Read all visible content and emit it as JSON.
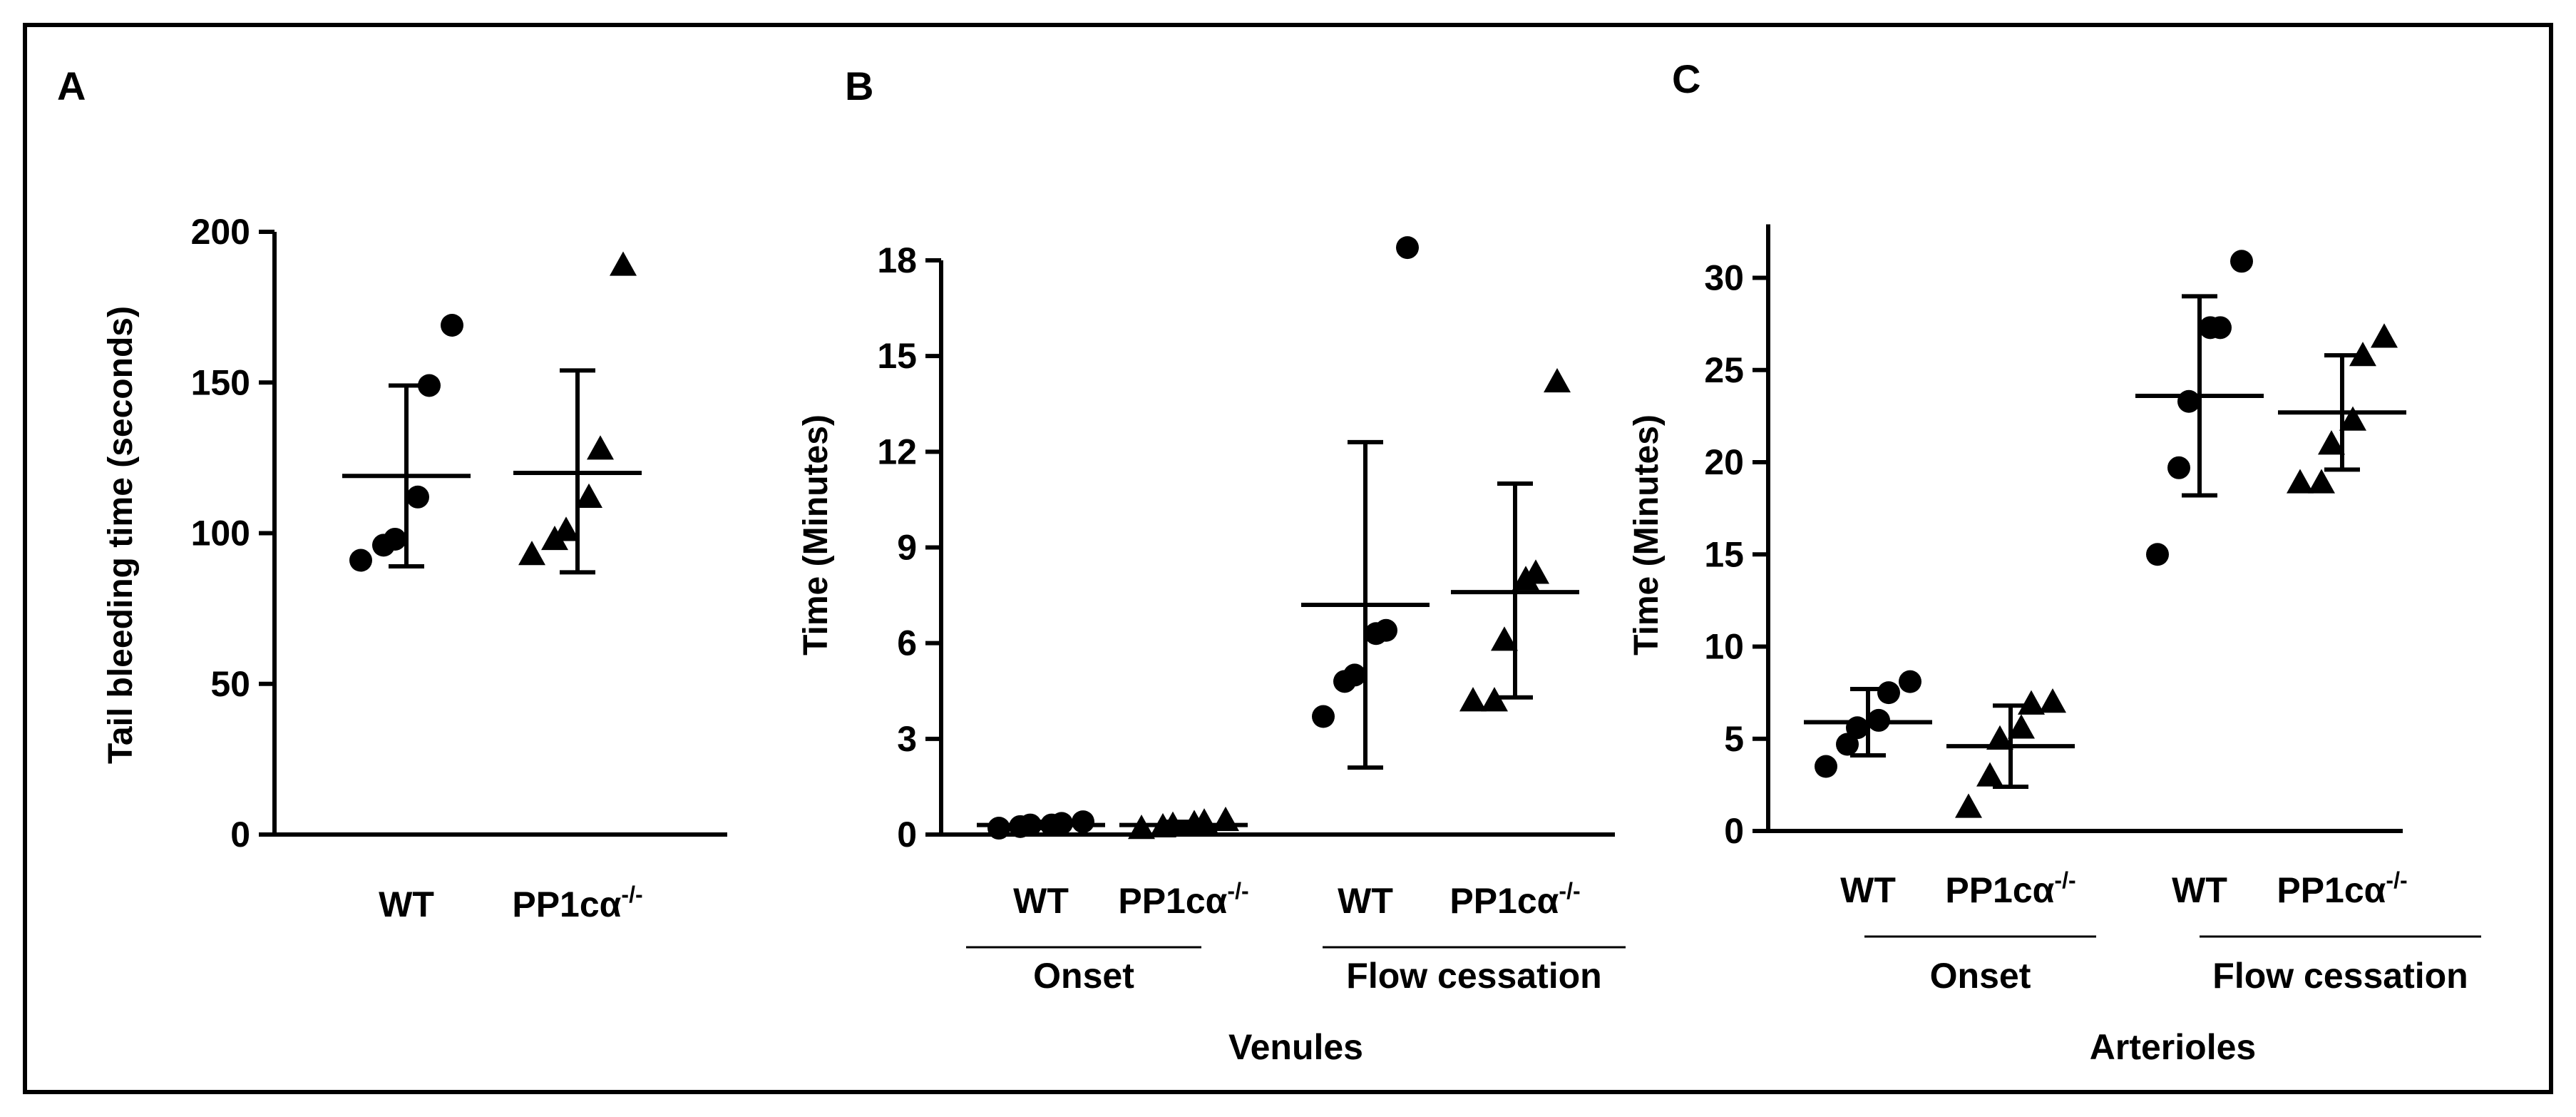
{
  "chart_data": [
    {
      "panel": "A",
      "type": "scatter",
      "ylabel": "Tail bleeding time (seconds)",
      "ylim": [
        0,
        200
      ],
      "yticks": [
        0,
        50,
        100,
        150,
        200
      ],
      "groups": [
        {
          "label": "WT",
          "marker": "circle",
          "mean": 119,
          "sd_low": 89,
          "sd_high": 149,
          "values": [
            91,
            96,
            98,
            112,
            149,
            169
          ]
        },
        {
          "label": "PP1cα",
          "sup": "-/-",
          "marker": "triangle",
          "mean": 120,
          "sd_low": 87,
          "sd_high": 154,
          "values": [
            93,
            98,
            101,
            112,
            128,
            189
          ]
        }
      ]
    },
    {
      "panel": "B",
      "type": "scatter",
      "ylabel": "Time (Minutes)",
      "ylim": [
        0,
        18
      ],
      "yticks": [
        0,
        3,
        6,
        9,
        12,
        15,
        18
      ],
      "subgroup_labels": [
        "Onset",
        "Flow cessation"
      ],
      "group_label": "Venules",
      "groups": [
        {
          "label": "WT",
          "marker": "circle",
          "mean": 0.3,
          "sd_low": 0.2,
          "sd_high": 0.4,
          "values": [
            0.2,
            0.25,
            0.3,
            0.3,
            0.35,
            0.4
          ]
        },
        {
          "label": "PP1cα",
          "sup": "-/-",
          "marker": "triangle",
          "mean": 0.3,
          "sd_low": 0.2,
          "sd_high": 0.4,
          "values": [
            0.2,
            0.25,
            0.3,
            0.35,
            0.4,
            0.45
          ]
        },
        {
          "label": "WT",
          "marker": "circle",
          "mean": 7.2,
          "sd_low": 2.1,
          "sd_high": 12.3,
          "values": [
            3.7,
            4.8,
            5.0,
            6.3,
            6.4,
            18.4
          ]
        },
        {
          "label": "PP1cα",
          "sup": "-/-",
          "marker": "triangle",
          "mean": 7.6,
          "sd_low": 4.3,
          "sd_high": 11.0,
          "values": [
            4.2,
            4.2,
            6.1,
            8.0,
            8.2,
            14.2
          ]
        }
      ]
    },
    {
      "panel": "C",
      "type": "scatter",
      "ylabel": "Time (Minutes)",
      "ylim": [
        0,
        33
      ],
      "yticks": [
        0,
        5,
        10,
        15,
        20,
        25,
        30
      ],
      "subgroup_labels": [
        "Onset",
        "Flow cessation"
      ],
      "group_label": "Arterioles",
      "groups": [
        {
          "label": "WT",
          "marker": "circle",
          "mean": 5.9,
          "sd_low": 4.1,
          "sd_high": 7.7,
          "values": [
            3.5,
            4.7,
            5.6,
            6.0,
            7.5,
            8.1
          ]
        },
        {
          "label": "PP1cα",
          "sup": "-/-",
          "marker": "triangle",
          "mean": 4.6,
          "sd_low": 2.4,
          "sd_high": 6.8,
          "values": [
            1.3,
            3.0,
            5.0,
            5.6,
            6.9,
            7.0
          ]
        },
        {
          "label": "WT",
          "marker": "circle",
          "mean": 23.6,
          "sd_low": 18.2,
          "sd_high": 29.0,
          "values": [
            15.0,
            19.7,
            23.3,
            27.3,
            27.3,
            30.9
          ]
        },
        {
          "label": "PP1cα",
          "sup": "-/-",
          "marker": "triangle",
          "mean": 22.7,
          "sd_low": 19.6,
          "sd_high": 25.8,
          "values": [
            18.9,
            18.9,
            21.0,
            22.3,
            25.8,
            26.8
          ]
        }
      ]
    }
  ]
}
